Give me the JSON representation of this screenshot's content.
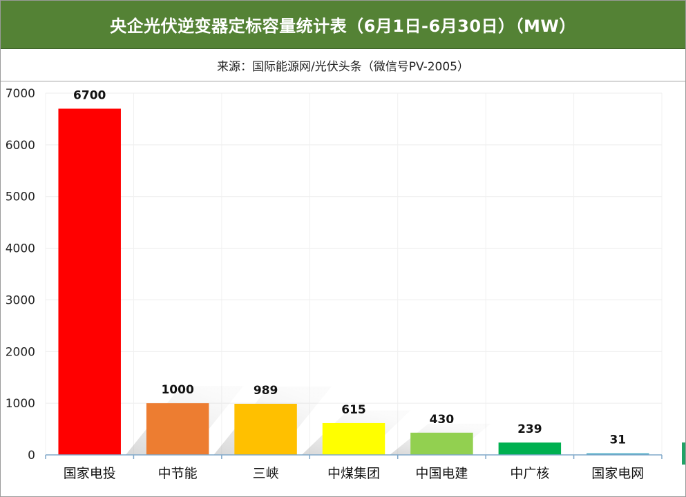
{
  "header": {
    "title": "央企光伏逆变器定标容量统计表（6月1日-6月30日）（MW）",
    "source": "来源：国际能源网/光伏头条（微信号PV-2005）"
  },
  "chart_data": {
    "type": "bar",
    "categories": [
      "国家电投",
      "中节能",
      "三峡",
      "中煤集团",
      "中国电建",
      "中广核",
      "国家电网"
    ],
    "values": [
      6700,
      1000,
      989,
      615,
      430,
      239,
      31
    ],
    "data_labels": [
      "6700",
      "1000",
      "989",
      "615",
      "430",
      "239",
      "31"
    ],
    "colors": [
      "#ff0000",
      "#ed7d31",
      "#ffc000",
      "#ffff00",
      "#92d050",
      "#00b050",
      "#4bacc6"
    ],
    "ylim": [
      0,
      7000
    ],
    "yticks": [
      0,
      1000,
      2000,
      3000,
      4000,
      5000,
      6000,
      7000
    ],
    "ytick_labels": [
      "0",
      "1000",
      "2000",
      "3000",
      "4000",
      "5000",
      "6000",
      "7000"
    ],
    "grid": true,
    "legend": "none"
  }
}
